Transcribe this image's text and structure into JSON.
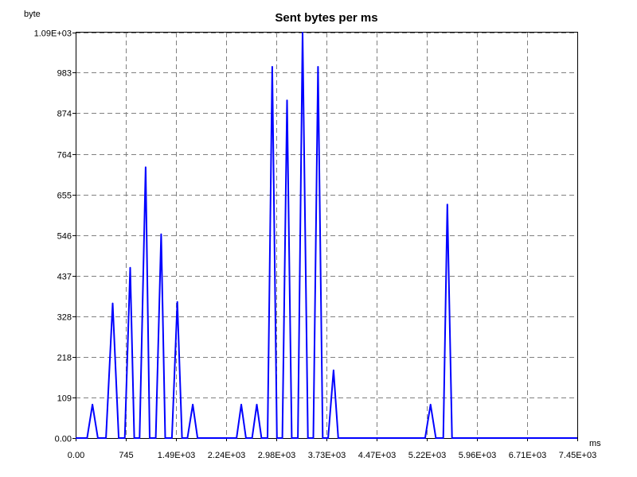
{
  "chart_data": {
    "type": "line",
    "title": "Sent bytes per ms",
    "xlabel": "ms",
    "ylabel": "byte",
    "xlim": [
      0,
      7450
    ],
    "ylim": [
      0,
      1090
    ],
    "x_ticks": [
      "0.00",
      "745",
      "1.49E+03",
      "2.24E+03",
      "2.98E+03",
      "3.73E+03",
      "4.47E+03",
      "5.22E+03",
      "5.96E+03",
      "6.71E+03",
      "7.45E+03"
    ],
    "x_tick_values": [
      0,
      745,
      1490,
      2240,
      2980,
      3730,
      4470,
      5220,
      5960,
      6710,
      7450
    ],
    "y_ticks": [
      "0.00",
      "109",
      "218",
      "328",
      "437",
      "546",
      "655",
      "764",
      "874",
      "983",
      "1.09E+03"
    ],
    "y_tick_values": [
      0,
      109,
      218,
      328,
      437,
      546,
      655,
      764,
      874,
      983,
      1090
    ],
    "grid": true,
    "series": [
      {
        "color": "#0000ff",
        "points": [
          [
            0,
            0
          ],
          [
            170,
            0
          ],
          [
            250,
            90
          ],
          [
            330,
            0
          ],
          [
            450,
            0
          ],
          [
            550,
            362
          ],
          [
            640,
            0
          ],
          [
            730,
            0
          ],
          [
            810,
            458
          ],
          [
            870,
            0
          ],
          [
            950,
            0
          ],
          [
            1040,
            728
          ],
          [
            1100,
            0
          ],
          [
            1190,
            0
          ],
          [
            1270,
            548
          ],
          [
            1330,
            0
          ],
          [
            1430,
            0
          ],
          [
            1510,
            366
          ],
          [
            1580,
            0
          ],
          [
            1660,
            0
          ],
          [
            1740,
            90
          ],
          [
            1810,
            0
          ],
          [
            2390,
            0
          ],
          [
            2460,
            90
          ],
          [
            2530,
            0
          ],
          [
            2620,
            0
          ],
          [
            2690,
            90
          ],
          [
            2760,
            0
          ],
          [
            2850,
            0
          ],
          [
            2920,
            998
          ],
          [
            2990,
            0
          ],
          [
            3070,
            0
          ],
          [
            3140,
            908
          ],
          [
            3210,
            0
          ],
          [
            3300,
            0
          ],
          [
            3370,
            1090
          ],
          [
            3450,
            0
          ],
          [
            3530,
            0
          ],
          [
            3600,
            998
          ],
          [
            3670,
            0
          ],
          [
            3750,
            0
          ],
          [
            3830,
            182
          ],
          [
            3900,
            0
          ],
          [
            5190,
            0
          ],
          [
            5270,
            90
          ],
          [
            5350,
            0
          ],
          [
            5460,
            0
          ],
          [
            5520,
            628
          ],
          [
            5590,
            0
          ],
          [
            7450,
            0
          ]
        ]
      }
    ]
  }
}
